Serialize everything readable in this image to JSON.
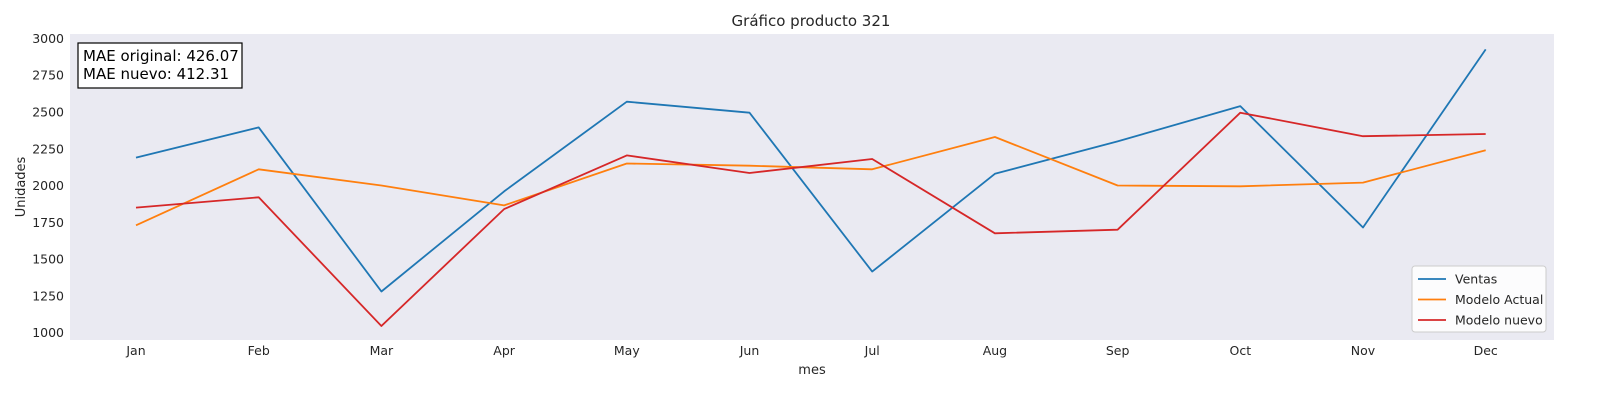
{
  "chart_data": {
    "type": "line",
    "title": "Gráfico producto 321",
    "xlabel": "mes",
    "ylabel": "Unidades",
    "categories": [
      "Jan",
      "Feb",
      "Mar",
      "Apr",
      "May",
      "Jun",
      "Jul",
      "Aug",
      "Sep",
      "Oct",
      "Nov",
      "Dec"
    ],
    "ylim": [
      950,
      3030
    ],
    "yticks": [
      1000,
      1250,
      1500,
      1750,
      2000,
      2250,
      2500,
      2750,
      3000
    ],
    "grid": false,
    "legend_position": "lower-right",
    "series": [
      {
        "name": "Ventas",
        "color": "#1f77b4",
        "values": [
          2190,
          2395,
          1280,
          1960,
          2570,
          2495,
          1415,
          2080,
          2300,
          2540,
          1715,
          2925
        ]
      },
      {
        "name": "Modelo Actual",
        "color": "#ff7f0e",
        "values": [
          1730,
          2110,
          2000,
          1865,
          2150,
          2135,
          2110,
          2330,
          2000,
          1995,
          2020,
          2240
        ]
      },
      {
        "name": "Modelo nuevo",
        "color": "#d62728",
        "values": [
          1850,
          1920,
          1045,
          1840,
          2205,
          2085,
          2180,
          1675,
          1700,
          2495,
          2335,
          2350
        ]
      }
    ],
    "annotation": {
      "lines": [
        "MAE original: 426.07",
        "MAE nuevo: 412.31"
      ],
      "position": "top-left"
    }
  },
  "style": {
    "plot_background": "#eaeaf2",
    "frame_color": "#ffffff"
  }
}
